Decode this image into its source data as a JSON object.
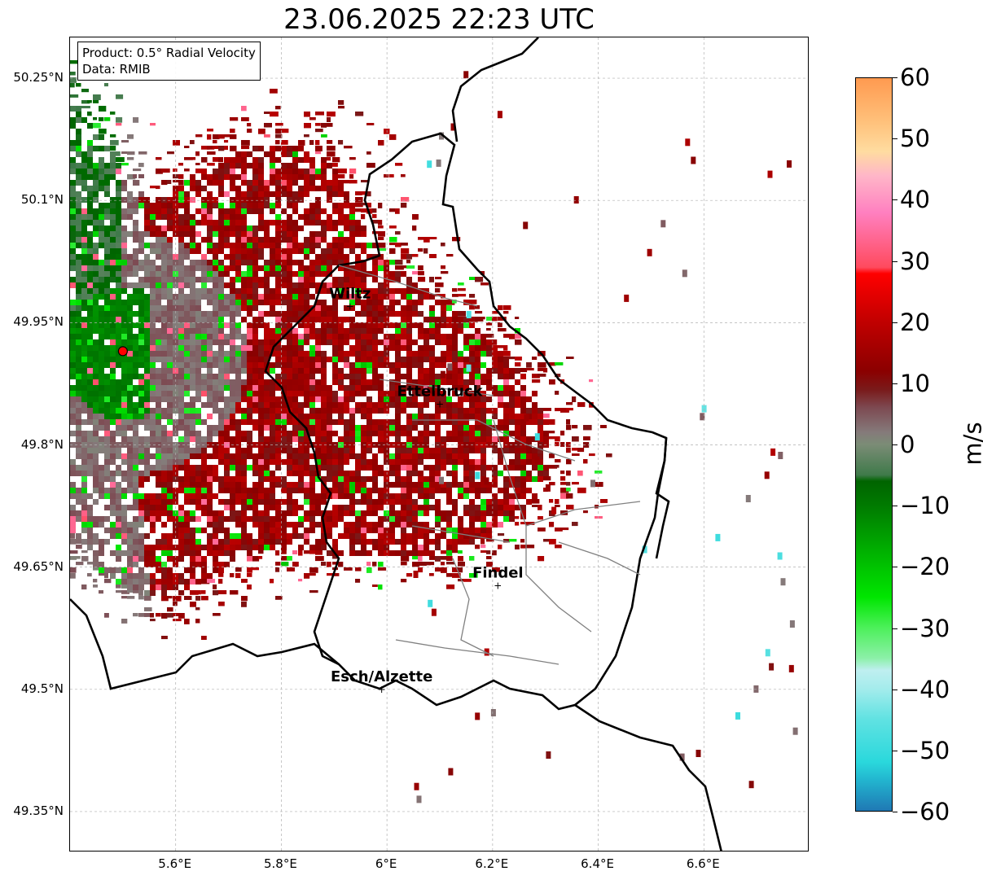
{
  "title": "23.06.2025 22:23 UTC",
  "info": {
    "product": "Product: 0.5° Radial Velocity",
    "data": "Data: RMIB"
  },
  "map": {
    "lat_ticks": [
      {
        "value": 50.25,
        "label": "50.25°N"
      },
      {
        "value": 50.1,
        "label": "50.1°N"
      },
      {
        "value": 49.95,
        "label": "49.95°N"
      },
      {
        "value": 49.8,
        "label": "49.8°N"
      },
      {
        "value": 49.65,
        "label": "49.65°N"
      },
      {
        "value": 49.5,
        "label": "49.5°N"
      },
      {
        "value": 49.35,
        "label": "49.35°N"
      }
    ],
    "lon_ticks": [
      {
        "value": 5.6,
        "label": "5.6°E"
      },
      {
        "value": 5.8,
        "label": "5.8°E"
      },
      {
        "value": 6.0,
        "label": "6°E"
      },
      {
        "value": 6.2,
        "label": "6.2°E"
      },
      {
        "value": 6.4,
        "label": "6.4°E"
      },
      {
        "value": 6.6,
        "label": "6.6°E"
      }
    ],
    "extent": {
      "lon_min": 5.4,
      "lon_max": 6.8,
      "lat_min": 49.3,
      "lat_max": 50.3
    },
    "radar_site": {
      "lon": 5.5,
      "lat": 49.915,
      "color": "#ff0000"
    },
    "cities": [
      {
        "name": "Wiltz",
        "lon": 5.93,
        "lat": 49.97
      },
      {
        "name": "Ettelbruck",
        "lon": 6.1,
        "lat": 49.85
      },
      {
        "name": "Findel",
        "lon": 6.21,
        "lat": 49.627
      },
      {
        "name": "Esch/Alzette",
        "lon": 5.99,
        "lat": 49.5
      }
    ],
    "border_color": "#000000",
    "canton_color": "#808080"
  },
  "colorbar": {
    "unit": "m/s",
    "min": -60,
    "max": 60,
    "ticks": [
      {
        "value": 60,
        "label": "60"
      },
      {
        "value": 50,
        "label": "50"
      },
      {
        "value": 40,
        "label": "40"
      },
      {
        "value": 30,
        "label": "30"
      },
      {
        "value": 20,
        "label": "20"
      },
      {
        "value": 10,
        "label": "10"
      },
      {
        "value": 0,
        "label": "0"
      },
      {
        "value": -10,
        "label": "−10"
      },
      {
        "value": -20,
        "label": "−20"
      },
      {
        "value": -30,
        "label": "−30"
      },
      {
        "value": -40,
        "label": "−40"
      },
      {
        "value": -50,
        "label": "−50"
      },
      {
        "value": -60,
        "label": "−60"
      }
    ],
    "stops": [
      {
        "value": -60,
        "color": "#1f78b4"
      },
      {
        "value": -55,
        "color": "#22b5cf"
      },
      {
        "value": -52,
        "color": "#2ad8dc"
      },
      {
        "value": -45,
        "color": "#60e2e2"
      },
      {
        "value": -40,
        "color": "#a4ecec"
      },
      {
        "value": -37,
        "color": "#bfeff0"
      },
      {
        "value": -35,
        "color": "#8cf0a8"
      },
      {
        "value": -30,
        "color": "#4cf05a"
      },
      {
        "value": -25,
        "color": "#00e600"
      },
      {
        "value": -18,
        "color": "#00b400"
      },
      {
        "value": -10,
        "color": "#007a00"
      },
      {
        "value": -6,
        "color": "#006400"
      },
      {
        "value": -5,
        "color": "#3f7a4a"
      },
      {
        "value": 0,
        "color": "#7b8c76"
      },
      {
        "value": 2,
        "color": "#857a7a"
      },
      {
        "value": 6,
        "color": "#7d4a52"
      },
      {
        "value": 9,
        "color": "#7a1a1a"
      },
      {
        "value": 12,
        "color": "#8b0000"
      },
      {
        "value": 20,
        "color": "#c00000"
      },
      {
        "value": 28,
        "color": "#ff0000"
      },
      {
        "value": 29,
        "color": "#ff4a5e"
      },
      {
        "value": 38,
        "color": "#ff80c0"
      },
      {
        "value": 44,
        "color": "#ffb6c8"
      },
      {
        "value": 48,
        "color": "#ffdca0"
      },
      {
        "value": 53,
        "color": "#ffc07a"
      },
      {
        "value": 60,
        "color": "#ff9a50"
      }
    ]
  }
}
